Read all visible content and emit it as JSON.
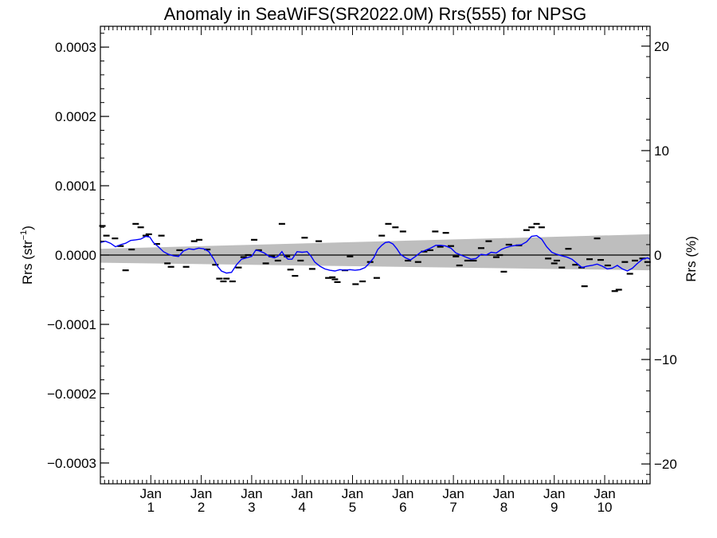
{
  "chart_data": {
    "type": "scatter",
    "title": "Anomaly in SeaWiFS(SR2022.0M) Rrs(555) for NPSG",
    "ylabel_left": "Rrs (str",
    "ylabel_left_sup": "−1",
    "ylabel_left_close": ")",
    "ylabel_right": "Rrs (%)",
    "xlim": [
      0.0,
      10.9
    ],
    "ylim": [
      -0.00033,
      0.00033
    ],
    "y2lim": [
      -21.9,
      21.9
    ],
    "yticks_major": [
      -0.0003,
      -0.0002,
      -0.0001,
      0.0,
      0.0001,
      0.0002,
      0.0003
    ],
    "ytick_labels": [
      "−0.0003",
      "−0.0002",
      "−0.0001",
      "0.0000",
      "0.0001",
      "0.0002",
      "0.0003"
    ],
    "y2ticks_major": [
      -20,
      -10,
      0,
      10,
      20
    ],
    "y2tick_labels": [
      "−20",
      "−10",
      "0",
      "10",
      "20"
    ],
    "xticks": [
      {
        "x": 1,
        "month": "Jan",
        "year": "1"
      },
      {
        "x": 2,
        "month": "Jan",
        "year": "2"
      },
      {
        "x": 3,
        "month": "Jan",
        "year": "3"
      },
      {
        "x": 4,
        "month": "Jan",
        "year": "4"
      },
      {
        "x": 5,
        "month": "Jan",
        "year": "5"
      },
      {
        "x": 6,
        "month": "Jan",
        "year": "6"
      },
      {
        "x": 7,
        "month": "Jan",
        "year": "7"
      },
      {
        "x": 8,
        "month": "Jan",
        "year": "8"
      },
      {
        "x": 9,
        "month": "Jan",
        "year": "9"
      },
      {
        "x": 10,
        "month": "Jan",
        "year": "10"
      }
    ],
    "zero_line": 0.0,
    "trend_band": {
      "start": {
        "x": 0.0,
        "lower": -1.1e-05,
        "upper": 9e-06
      },
      "end": {
        "x": 10.9,
        "lower": -2.2e-05,
        "upper": 3e-05
      }
    },
    "points": [
      [
        0.04,
        4.2e-05
      ],
      [
        0.12,
        2.8e-05
      ],
      [
        0.29,
        2.4e-05
      ],
      [
        0.4,
        1.3e-05
      ],
      [
        0.5,
        -2.2e-05
      ],
      [
        0.62,
        8e-06
      ],
      [
        0.7,
        4.5e-05
      ],
      [
        0.8,
        4e-05
      ],
      [
        0.9,
        2.8e-05
      ],
      [
        0.96,
        3e-05
      ],
      [
        1.12,
        1.6e-05
      ],
      [
        1.21,
        2.8e-05
      ],
      [
        1.33,
        -1.2e-05
      ],
      [
        1.4,
        -1.7e-05
      ],
      [
        1.57,
        7e-06
      ],
      [
        1.7,
        -1.7e-05
      ],
      [
        1.86,
        2e-05
      ],
      [
        1.96,
        2.2e-05
      ],
      [
        2.12,
        8e-06
      ],
      [
        2.28,
        -1.4e-05
      ],
      [
        2.36,
        -3.4e-05
      ],
      [
        2.44,
        -3.8e-05
      ],
      [
        2.5,
        -3.4e-05
      ],
      [
        2.62,
        -3.8e-05
      ],
      [
        2.74,
        -1.8e-05
      ],
      [
        2.84,
        -3e-06
      ],
      [
        2.93,
        0.0
      ],
      [
        3.05,
        2.2e-05
      ],
      [
        3.14,
        7e-06
      ],
      [
        3.28,
        -1.2e-05
      ],
      [
        3.4,
        -2e-06
      ],
      [
        3.52,
        -8e-06
      ],
      [
        3.6,
        4.5e-05
      ],
      [
        3.7,
        -2e-06
      ],
      [
        3.77,
        -2.1e-05
      ],
      [
        3.86,
        -3e-05
      ],
      [
        3.97,
        -8e-06
      ],
      [
        4.05,
        2.5e-05
      ],
      [
        4.2,
        -2e-05
      ],
      [
        4.33,
        2e-05
      ],
      [
        4.52,
        -3.3e-05
      ],
      [
        4.6,
        -3.2e-05
      ],
      [
        4.65,
        -3.5e-05
      ],
      [
        4.7,
        -3.9e-05
      ],
      [
        4.85,
        -2.2e-05
      ],
      [
        4.95,
        -2e-06
      ],
      [
        5.06,
        -4.2e-05
      ],
      [
        5.2,
        -3.8e-05
      ],
      [
        5.35,
        -1e-05
      ],
      [
        5.48,
        -3.3e-05
      ],
      [
        5.58,
        2.8e-05
      ],
      [
        5.71,
        4.5e-05
      ],
      [
        5.85,
        4e-05
      ],
      [
        6.0,
        3.4e-05
      ],
      [
        6.1,
        -8e-06
      ],
      [
        6.3,
        -1e-05
      ],
      [
        6.42,
        5e-06
      ],
      [
        6.54,
        7e-06
      ],
      [
        6.64,
        3.4e-05
      ],
      [
        6.74,
        1.2e-05
      ],
      [
        6.85,
        3.2e-05
      ],
      [
        6.95,
        1.3e-05
      ],
      [
        7.05,
        -2e-06
      ],
      [
        7.12,
        -1.5e-05
      ],
      [
        7.28,
        -8e-06
      ],
      [
        7.4,
        -8e-06
      ],
      [
        7.55,
        1e-05
      ],
      [
        7.7,
        2e-05
      ],
      [
        7.85,
        -3e-06
      ],
      [
        7.92,
        0.0
      ],
      [
        8.0,
        -2.4e-05
      ],
      [
        8.1,
        1.5e-05
      ],
      [
        8.3,
        1.4e-05
      ],
      [
        8.45,
        3.6e-05
      ],
      [
        8.55,
        4e-05
      ],
      [
        8.65,
        4.5e-05
      ],
      [
        8.75,
        4e-05
      ],
      [
        8.88,
        -5e-06
      ],
      [
        9.0,
        -1.2e-05
      ],
      [
        9.05,
        -8e-06
      ],
      [
        9.15,
        -1.8e-05
      ],
      [
        9.28,
        9e-06
      ],
      [
        9.42,
        -1.4e-05
      ],
      [
        9.54,
        -1.8e-05
      ],
      [
        9.6,
        -4.5e-05
      ],
      [
        9.7,
        -6e-06
      ],
      [
        9.85,
        2.4e-05
      ],
      [
        9.92,
        -7e-06
      ],
      [
        10.06,
        -1.5e-05
      ],
      [
        10.2,
        -5.2e-05
      ],
      [
        10.28,
        -5e-05
      ],
      [
        10.4,
        -1e-05
      ],
      [
        10.5,
        -2.7e-05
      ],
      [
        10.6,
        -8e-06
      ],
      [
        10.75,
        -5e-06
      ],
      [
        10.85,
        -1e-05
      ]
    ],
    "smoothed_line": [
      [
        0.0,
        1.8e-05
      ],
      [
        0.1,
        2e-05
      ],
      [
        0.2,
        1.7e-05
      ],
      [
        0.3,
        1.2e-05
      ],
      [
        0.4,
        1.5e-05
      ],
      [
        0.5,
        1.7e-05
      ],
      [
        0.6,
        2.1e-05
      ],
      [
        0.7,
        2.2e-05
      ],
      [
        0.8,
        2.3e-05
      ],
      [
        0.9,
        2.7e-05
      ],
      [
        0.98,
        2.6e-05
      ],
      [
        1.05,
        1.8e-05
      ],
      [
        1.15,
        1.2e-05
      ],
      [
        1.25,
        5e-06
      ],
      [
        1.35,
        1e-06
      ],
      [
        1.45,
        -1e-06
      ],
      [
        1.55,
        -2e-06
      ],
      [
        1.65,
        6e-06
      ],
      [
        1.75,
        9e-06
      ],
      [
        1.85,
        8e-06
      ],
      [
        1.95,
        1e-05
      ],
      [
        2.05,
        9e-06
      ],
      [
        2.15,
        5e-06
      ],
      [
        2.25,
        -6e-06
      ],
      [
        2.32,
        -1.6e-05
      ],
      [
        2.4,
        -2.3e-05
      ],
      [
        2.5,
        -2.6e-05
      ],
      [
        2.6,
        -2.5e-05
      ],
      [
        2.7,
        -1.4e-05
      ],
      [
        2.8,
        -6e-06
      ],
      [
        2.9,
        -4e-06
      ],
      [
        3.0,
        -2e-06
      ],
      [
        3.08,
        7e-06
      ],
      [
        3.15,
        6e-06
      ],
      [
        3.25,
        3e-06
      ],
      [
        3.35,
        -2e-06
      ],
      [
        3.45,
        -4e-06
      ],
      [
        3.52,
        -2e-06
      ],
      [
        3.6,
        5e-06
      ],
      [
        3.66,
        -2e-06
      ],
      [
        3.72,
        -6e-06
      ],
      [
        3.8,
        -6e-06
      ],
      [
        3.9,
        5e-06
      ],
      [
        4.0,
        4e-06
      ],
      [
        4.1,
        5e-06
      ],
      [
        4.18,
        -2e-06
      ],
      [
        4.25,
        -1e-05
      ],
      [
        4.35,
        -1.6e-05
      ],
      [
        4.45,
        -2e-05
      ],
      [
        4.55,
        -2.2e-05
      ],
      [
        4.65,
        -2.3e-05
      ],
      [
        4.75,
        -2.1e-05
      ],
      [
        4.85,
        -2.2e-05
      ],
      [
        4.95,
        -2.1e-05
      ],
      [
        5.05,
        -2.2e-05
      ],
      [
        5.15,
        -2.1e-05
      ],
      [
        5.25,
        -1.8e-05
      ],
      [
        5.33,
        -1.2e-05
      ],
      [
        5.42,
        -4e-06
      ],
      [
        5.5,
        8e-06
      ],
      [
        5.58,
        1.4e-05
      ],
      [
        5.65,
        1.8e-05
      ],
      [
        5.72,
        1.9e-05
      ],
      [
        5.8,
        1.6e-05
      ],
      [
        5.88,
        9e-06
      ],
      [
        5.95,
        1e-06
      ],
      [
        6.05,
        -4e-06
      ],
      [
        6.15,
        -7e-06
      ],
      [
        6.25,
        -2e-06
      ],
      [
        6.35,
        4e-06
      ],
      [
        6.45,
        7e-06
      ],
      [
        6.55,
        1e-05
      ],
      [
        6.65,
        1.4e-05
      ],
      [
        6.75,
        1.4e-05
      ],
      [
        6.85,
        1.3e-05
      ],
      [
        6.95,
        1e-05
      ],
      [
        7.05,
        3e-06
      ],
      [
        7.15,
        0.0
      ],
      [
        7.25,
        -3e-06
      ],
      [
        7.35,
        -6e-06
      ],
      [
        7.45,
        -5e-06
      ],
      [
        7.55,
        1e-06
      ],
      [
        7.65,
        0.0
      ],
      [
        7.75,
        4e-06
      ],
      [
        7.85,
        3e-06
      ],
      [
        7.95,
        8e-06
      ],
      [
        8.05,
        1.1e-05
      ],
      [
        8.15,
        1.3e-05
      ],
      [
        8.25,
        1.4e-05
      ],
      [
        8.35,
        1.5e-05
      ],
      [
        8.45,
        1.9e-05
      ],
      [
        8.55,
        2.7e-05
      ],
      [
        8.65,
        2.8e-05
      ],
      [
        8.75,
        2.3e-05
      ],
      [
        8.85,
        1.2e-05
      ],
      [
        8.95,
        4e-06
      ],
      [
        9.05,
        1e-06
      ],
      [
        9.15,
        -1e-06
      ],
      [
        9.25,
        -3e-06
      ],
      [
        9.35,
        -6e-06
      ],
      [
        9.45,
        -1.2e-05
      ],
      [
        9.55,
        -1.8e-05
      ],
      [
        9.65,
        -1.6e-05
      ],
      [
        9.75,
        -1.5e-05
      ],
      [
        9.85,
        -1.3e-05
      ],
      [
        9.95,
        -1.6e-05
      ],
      [
        10.05,
        -2e-05
      ],
      [
        10.15,
        -1.9e-05
      ],
      [
        10.25,
        -1.5e-05
      ],
      [
        10.35,
        -2e-05
      ],
      [
        10.45,
        -2.3e-05
      ],
      [
        10.55,
        -1.9e-05
      ],
      [
        10.65,
        -1.2e-05
      ],
      [
        10.75,
        -6e-06
      ],
      [
        10.85,
        -4e-06
      ],
      [
        10.9,
        -6e-06
      ]
    ],
    "colors": {
      "band": "#bebebe",
      "line": "#0000ff",
      "points": "#000000",
      "axes": "#000000"
    }
  }
}
